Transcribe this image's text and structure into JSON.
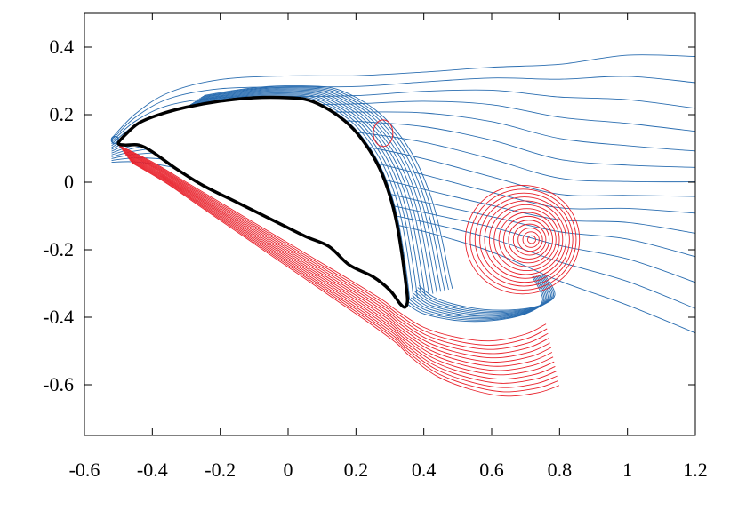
{
  "chart_data": {
    "type": "line",
    "title": "",
    "xlabel": "",
    "ylabel": "",
    "xlim": [
      -0.6,
      1.2
    ],
    "ylim": [
      -0.75,
      0.5
    ],
    "x_ticks": [
      -0.6,
      -0.4,
      -0.2,
      0,
      0.2,
      0.4,
      0.6,
      0.8,
      1,
      1.2
    ],
    "x_tick_labels": [
      "-0.6",
      "-0.4",
      "-0.2",
      "0",
      "0.2",
      "0.4",
      "0.6",
      "0.8",
      "1",
      "1.2"
    ],
    "y_ticks": [
      0.4,
      0.2,
      0,
      -0.2,
      -0.4,
      -0.6
    ],
    "y_tick_labels": [
      "0.4",
      "0.2",
      "0",
      "-0.2",
      "-0.4",
      "-0.6"
    ],
    "grid": false,
    "colors": {
      "body": "#000000",
      "positive_vorticity": "#2a6db0",
      "negative_vorticity": "#e8202a"
    },
    "series": [
      {
        "role": "body_outline",
        "closed": true,
        "points": [
          [
            -0.5,
            0.115
          ],
          [
            -0.48,
            0.14
          ],
          [
            -0.44,
            0.175
          ],
          [
            -0.38,
            0.2
          ],
          [
            -0.3,
            0.222
          ],
          [
            -0.2,
            0.24
          ],
          [
            -0.1,
            0.25
          ],
          [
            0.0,
            0.25
          ],
          [
            0.06,
            0.243
          ],
          [
            0.12,
            0.215
          ],
          [
            0.18,
            0.17
          ],
          [
            0.23,
            0.11
          ],
          [
            0.27,
            0.04
          ],
          [
            0.3,
            -0.04
          ],
          [
            0.32,
            -0.12
          ],
          [
            0.335,
            -0.21
          ],
          [
            0.347,
            -0.3
          ],
          [
            0.352,
            -0.35
          ],
          [
            0.345,
            -0.37
          ],
          [
            0.33,
            -0.36
          ],
          [
            0.3,
            -0.32
          ],
          [
            0.25,
            -0.28
          ],
          [
            0.18,
            -0.245
          ],
          [
            0.12,
            -0.19
          ],
          [
            0.05,
            -0.16
          ],
          [
            -0.05,
            -0.11
          ],
          [
            -0.15,
            -0.06
          ],
          [
            -0.25,
            -0.01
          ],
          [
            -0.33,
            0.04
          ],
          [
            -0.4,
            0.09
          ],
          [
            -0.44,
            0.11
          ],
          [
            -0.48,
            0.11
          ],
          [
            -0.5,
            0.115
          ]
        ]
      },
      {
        "role": "blue_upper_layer",
        "points": [
          [
            -0.52,
            0.13
          ],
          [
            -0.45,
            0.2
          ],
          [
            -0.35,
            0.26
          ],
          [
            -0.2,
            0.3
          ],
          [
            0.0,
            0.32
          ],
          [
            0.2,
            0.33
          ],
          [
            0.4,
            0.34
          ],
          [
            0.6,
            0.34
          ],
          [
            0.8,
            0.33
          ],
          [
            1.0,
            0.35
          ],
          [
            1.2,
            0.36
          ]
        ]
      },
      {
        "role": "blue_trailing_layer",
        "points": [
          [
            0.35,
            -0.36
          ],
          [
            0.4,
            -0.39
          ],
          [
            0.5,
            -0.41
          ],
          [
            0.6,
            -0.41
          ],
          [
            0.7,
            -0.39
          ],
          [
            0.75,
            -0.35
          ],
          [
            0.72,
            -0.28
          ]
        ]
      },
      {
        "role": "red_lower_layer",
        "points": [
          [
            -0.5,
            0.11
          ],
          [
            -0.4,
            0.06
          ],
          [
            -0.3,
            0.0
          ],
          [
            -0.2,
            -0.06
          ],
          [
            -0.1,
            -0.12
          ],
          [
            0.0,
            -0.18
          ],
          [
            0.1,
            -0.24
          ],
          [
            0.2,
            -0.3
          ],
          [
            0.28,
            -0.35
          ],
          [
            0.32,
            -0.38
          ],
          [
            0.4,
            -0.43
          ],
          [
            0.5,
            -0.46
          ],
          [
            0.6,
            -0.47
          ],
          [
            0.7,
            -0.45
          ],
          [
            0.76,
            -0.42
          ]
        ]
      },
      {
        "role": "red_vortex_center",
        "points": [
          [
            0.72,
            -0.17
          ]
        ]
      },
      {
        "role": "red_small_loop_center",
        "points": [
          [
            0.28,
            0.145
          ]
        ]
      }
    ]
  }
}
